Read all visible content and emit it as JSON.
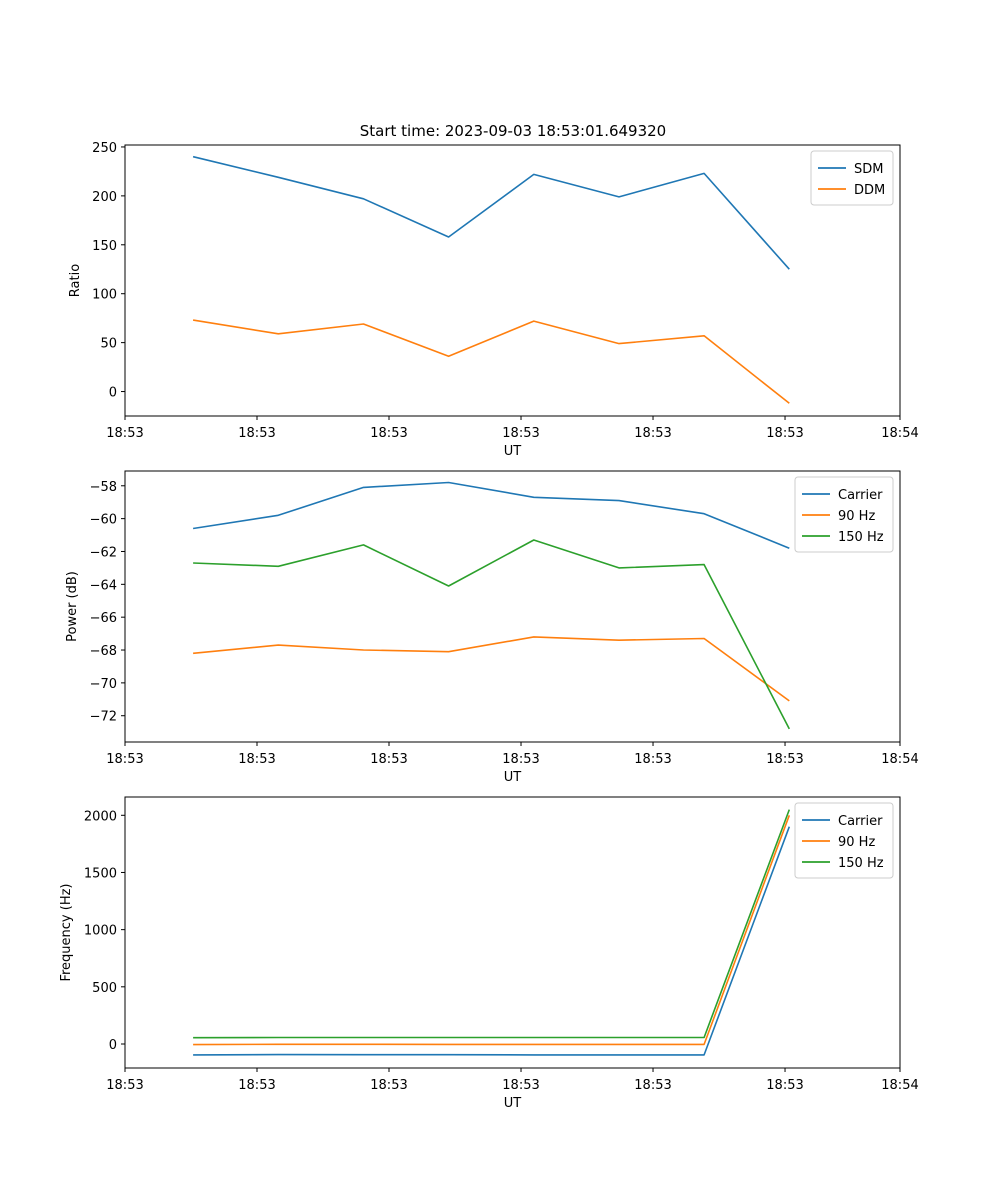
{
  "figure_title": "Start time: 2023-09-03 18:53:01.649320",
  "chart_data": [
    {
      "type": "line",
      "title": "Start time: 2023-09-03 18:53:01.649320",
      "xlabel": "UT",
      "ylabel": "Ratio",
      "x": [
        1,
        2,
        3,
        4,
        5,
        6,
        7,
        8
      ],
      "xlim": [
        0.2,
        9.3
      ],
      "xticks": [
        0.2,
        1.75,
        3.3,
        4.85,
        6.4,
        7.95,
        9.3
      ],
      "xtick_labels": [
        "18:53",
        "18:53",
        "18:53",
        "18:53",
        "18:53",
        "18:53",
        "18:54"
      ],
      "ylim": [
        -25,
        252
      ],
      "yticks": [
        0,
        50,
        100,
        150,
        200,
        250
      ],
      "ytick_labels": [
        "0",
        "50",
        "100",
        "150",
        "200",
        "250"
      ],
      "legend_position": "top-right",
      "series": [
        {
          "name": "SDM",
          "color": "#1f77b4",
          "values": [
            240,
            219,
            197,
            158,
            222,
            199,
            223,
            125
          ]
        },
        {
          "name": "DDM",
          "color": "#ff7f0e",
          "values": [
            73,
            59,
            69,
            36,
            72,
            49,
            57,
            -12
          ]
        }
      ]
    },
    {
      "type": "line",
      "title": "",
      "xlabel": "UT",
      "ylabel": "Power (dB)",
      "x": [
        1,
        2,
        3,
        4,
        5,
        6,
        7,
        8
      ],
      "xlim": [
        0.2,
        9.3
      ],
      "xticks": [
        0.2,
        1.75,
        3.3,
        4.85,
        6.4,
        7.95,
        9.3
      ],
      "xtick_labels": [
        "18:53",
        "18:53",
        "18:53",
        "18:53",
        "18:53",
        "18:53",
        "18:54"
      ],
      "ylim": [
        -73.6,
        -57.1
      ],
      "yticks": [
        -72,
        -70,
        -68,
        -66,
        -64,
        -62,
        -60,
        -58
      ],
      "ytick_labels": [
        "−72",
        "−70",
        "−68",
        "−66",
        "−64",
        "−62",
        "−60",
        "−58"
      ],
      "legend_position": "top-right",
      "series": [
        {
          "name": "Carrier",
          "color": "#1f77b4",
          "values": [
            -60.6,
            -59.8,
            -58.1,
            -57.8,
            -58.7,
            -58.9,
            -59.7,
            -61.8
          ]
        },
        {
          "name": "90 Hz",
          "color": "#ff7f0e",
          "values": [
            -68.2,
            -67.7,
            -68.0,
            -68.1,
            -67.2,
            -67.4,
            -67.3,
            -71.1
          ]
        },
        {
          "name": "150 Hz",
          "color": "#2ca02c",
          "values": [
            -62.7,
            -62.9,
            -61.6,
            -64.1,
            -61.3,
            -63.0,
            -62.8,
            -72.8
          ]
        }
      ]
    },
    {
      "type": "line",
      "title": "",
      "xlabel": "UT",
      "ylabel": "Frequency (Hz)",
      "x": [
        1,
        2,
        3,
        4,
        5,
        6,
        7,
        8
      ],
      "xlim": [
        0.2,
        9.3
      ],
      "xticks": [
        0.2,
        1.75,
        3.3,
        4.85,
        6.4,
        7.95,
        9.3
      ],
      "xtick_labels": [
        "18:53",
        "18:53",
        "18:53",
        "18:53",
        "18:53",
        "18:53",
        "18:54"
      ],
      "ylim": [
        -210,
        2160
      ],
      "yticks": [
        0,
        500,
        1000,
        1500,
        2000
      ],
      "ytick_labels": [
        "0",
        "500",
        "1000",
        "1500",
        "2000"
      ],
      "legend_position": "top-right",
      "series": [
        {
          "name": "Carrier",
          "color": "#1f77b4",
          "values": [
            -95,
            -93,
            -94,
            -94,
            -95,
            -95,
            -95,
            1900
          ]
        },
        {
          "name": "90 Hz",
          "color": "#ff7f0e",
          "values": [
            -5,
            -3,
            -3,
            -4,
            -4,
            -4,
            -4,
            2000
          ]
        },
        {
          "name": "150 Hz",
          "color": "#2ca02c",
          "values": [
            55,
            57,
            57,
            57,
            57,
            57,
            57,
            2050
          ]
        }
      ]
    }
  ]
}
